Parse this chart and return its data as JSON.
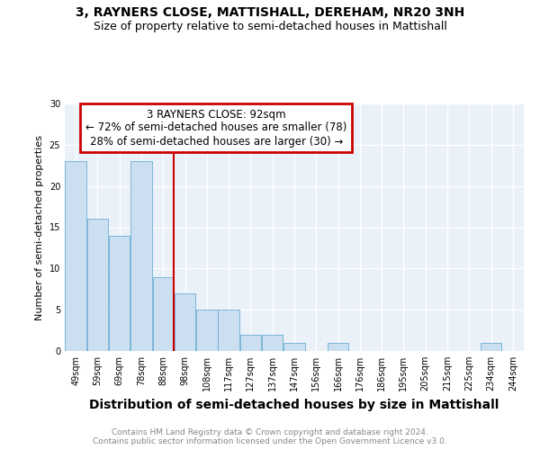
{
  "title1": "3, RAYNERS CLOSE, MATTISHALL, DEREHAM, NR20 3NH",
  "title2": "Size of property relative to semi-detached houses in Mattishall",
  "xlabel": "Distribution of semi-detached houses by size in Mattishall",
  "ylabel": "Number of semi-detached properties",
  "categories": [
    "49sqm",
    "59sqm",
    "69sqm",
    "78sqm",
    "88sqm",
    "98sqm",
    "108sqm",
    "117sqm",
    "127sqm",
    "137sqm",
    "147sqm",
    "156sqm",
    "166sqm",
    "176sqm",
    "186sqm",
    "195sqm",
    "205sqm",
    "215sqm",
    "225sqm",
    "234sqm",
    "244sqm"
  ],
  "values": [
    23,
    16,
    14,
    23,
    9,
    7,
    5,
    5,
    2,
    2,
    1,
    0,
    1,
    0,
    0,
    0,
    0,
    0,
    0,
    1,
    0
  ],
  "bar_color": "#ccdff0",
  "bar_edge_color": "#6aaed6",
  "property_line_x": 4.5,
  "property_label": "3 RAYNERS CLOSE: 92sqm",
  "annotation_line1": "← 72% of semi-detached houses are smaller (78)",
  "annotation_line2": "28% of semi-detached houses are larger (30) →",
  "annotation_box_color": "#ffffff",
  "annotation_box_edge": "#cc0000",
  "vline_color": "#cc0000",
  "ylim": [
    0,
    30
  ],
  "yticks": [
    0,
    5,
    10,
    15,
    20,
    25,
    30
  ],
  "footer1": "Contains HM Land Registry data © Crown copyright and database right 2024.",
  "footer2": "Contains public sector information licensed under the Open Government Licence v3.0.",
  "background_color": "#eaf1f8",
  "title1_fontsize": 10,
  "title2_fontsize": 9,
  "xlabel_fontsize": 10,
  "ylabel_fontsize": 8,
  "tick_fontsize": 7,
  "footer_fontsize": 6.5,
  "annot_fontsize": 8.5
}
